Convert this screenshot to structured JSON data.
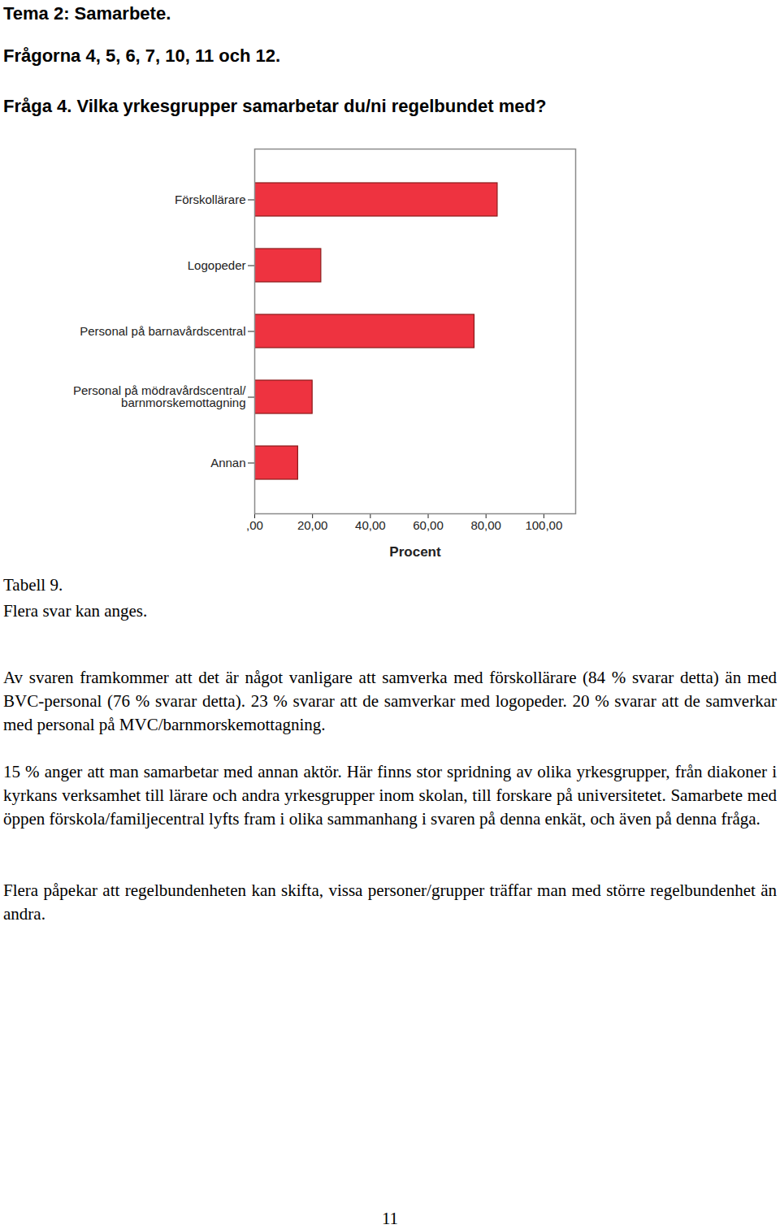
{
  "header": {
    "theme": "Tema 2: Samarbete.",
    "questions": "Frågorna 4, 5, 6, 7, 10, 11 och 12.",
    "question": "Fråga 4. Vilka yrkesgrupper samarbetar du/ni regelbundet med?"
  },
  "chart_data": {
    "type": "bar",
    "orientation": "horizontal",
    "categories": [
      "Förskollärare",
      "Logopeder",
      "Personal på barnavårdscentral",
      "Personal på mödravårdscentral/\nbarnmorskemottagning",
      "Annan"
    ],
    "values": [
      84,
      23,
      76,
      20,
      15
    ],
    "color": "#ee3340",
    "x_label": "Procent",
    "xlim": [
      0,
      111
    ],
    "xticks": [
      {
        "value": 0,
        "label": ",00"
      },
      {
        "value": 20,
        "label": "20,00"
      },
      {
        "value": 40,
        "label": "40,00"
      },
      {
        "value": 60,
        "label": "60,00"
      },
      {
        "value": 80,
        "label": "80,00"
      },
      {
        "value": 100,
        "label": "100,00"
      }
    ],
    "grid": false
  },
  "caption": "Tabell 9.",
  "note": "Flera svar kan anges.",
  "paragraphs": [
    "Av svaren framkommer att det är något vanligare att samverka med förskollärare (84 % svarar detta) än med BVC-personal (76 % svarar detta). 23 % svarar att de samverkar med logopeder. 20 % svarar att de samverkar med personal på MVC/barnmorskemottagning.",
    "15 % anger att man samarbetar med annan aktör. Här finns stor spridning av olika yrkesgrupper, från diakoner i kyrkans verksamhet till lärare och andra yrkesgrupper inom skolan, till forskare på universitetet. Samarbete med öppen förskola/familjecentral lyfts fram i olika sammanhang i svaren på denna enkät, och även på denna fråga.",
    "Flera påpekar att regelbundenheten kan skifta, vissa personer/grupper träffar man med större regelbundenhet än andra."
  ],
  "page_number": "11"
}
